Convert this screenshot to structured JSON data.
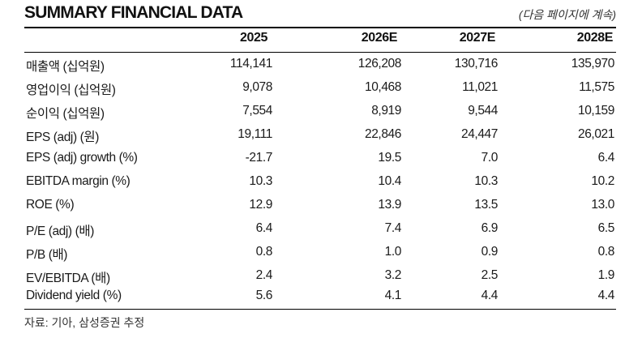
{
  "header": {
    "title": "SUMMARY FINANCIAL DATA",
    "continued_note": "(다음 페이지에 계속)"
  },
  "table": {
    "columns": [
      "2025",
      "2026E",
      "2027E",
      "2028E"
    ],
    "rows": [
      {
        "label": "매출액 (십억원)",
        "values": [
          "114,141",
          "126,208",
          "130,716",
          "135,970"
        ]
      },
      {
        "label": "영업이익 (십억원)",
        "values": [
          "9,078",
          "10,468",
          "11,021",
          "11,575"
        ]
      },
      {
        "label": "순이익 (십억원)",
        "values": [
          "7,554",
          "8,919",
          "9,544",
          "10,159"
        ]
      },
      {
        "label": "EPS (adj) (원)",
        "values": [
          "19,111",
          "22,846",
          "24,447",
          "26,021"
        ]
      },
      {
        "label": "EPS (adj) growth (%)",
        "values": [
          "-21.7",
          "19.5",
          "7.0",
          "6.4"
        ]
      },
      {
        "label": "EBITDA margin (%)",
        "values": [
          "10.3",
          "10.4",
          "10.3",
          "10.2"
        ]
      },
      {
        "label": "ROE (%)",
        "values": [
          "12.9",
          "13.9",
          "13.5",
          "13.0"
        ]
      },
      {
        "label": "P/E (adj) (배)",
        "values": [
          "6.4",
          "7.4",
          "6.9",
          "6.5"
        ]
      },
      {
        "label": "P/B (배)",
        "values": [
          "0.8",
          "1.0",
          "0.9",
          "0.8"
        ]
      },
      {
        "label": "EV/EBITDA (배)",
        "values": [
          "2.4",
          "3.2",
          "2.5",
          "1.9"
        ]
      },
      {
        "label": "Dividend yield (%)",
        "values": [
          "5.6",
          "4.1",
          "4.4",
          "4.4"
        ]
      }
    ]
  },
  "footer": {
    "source": "자료: 기아, 삼성증권 추정"
  }
}
